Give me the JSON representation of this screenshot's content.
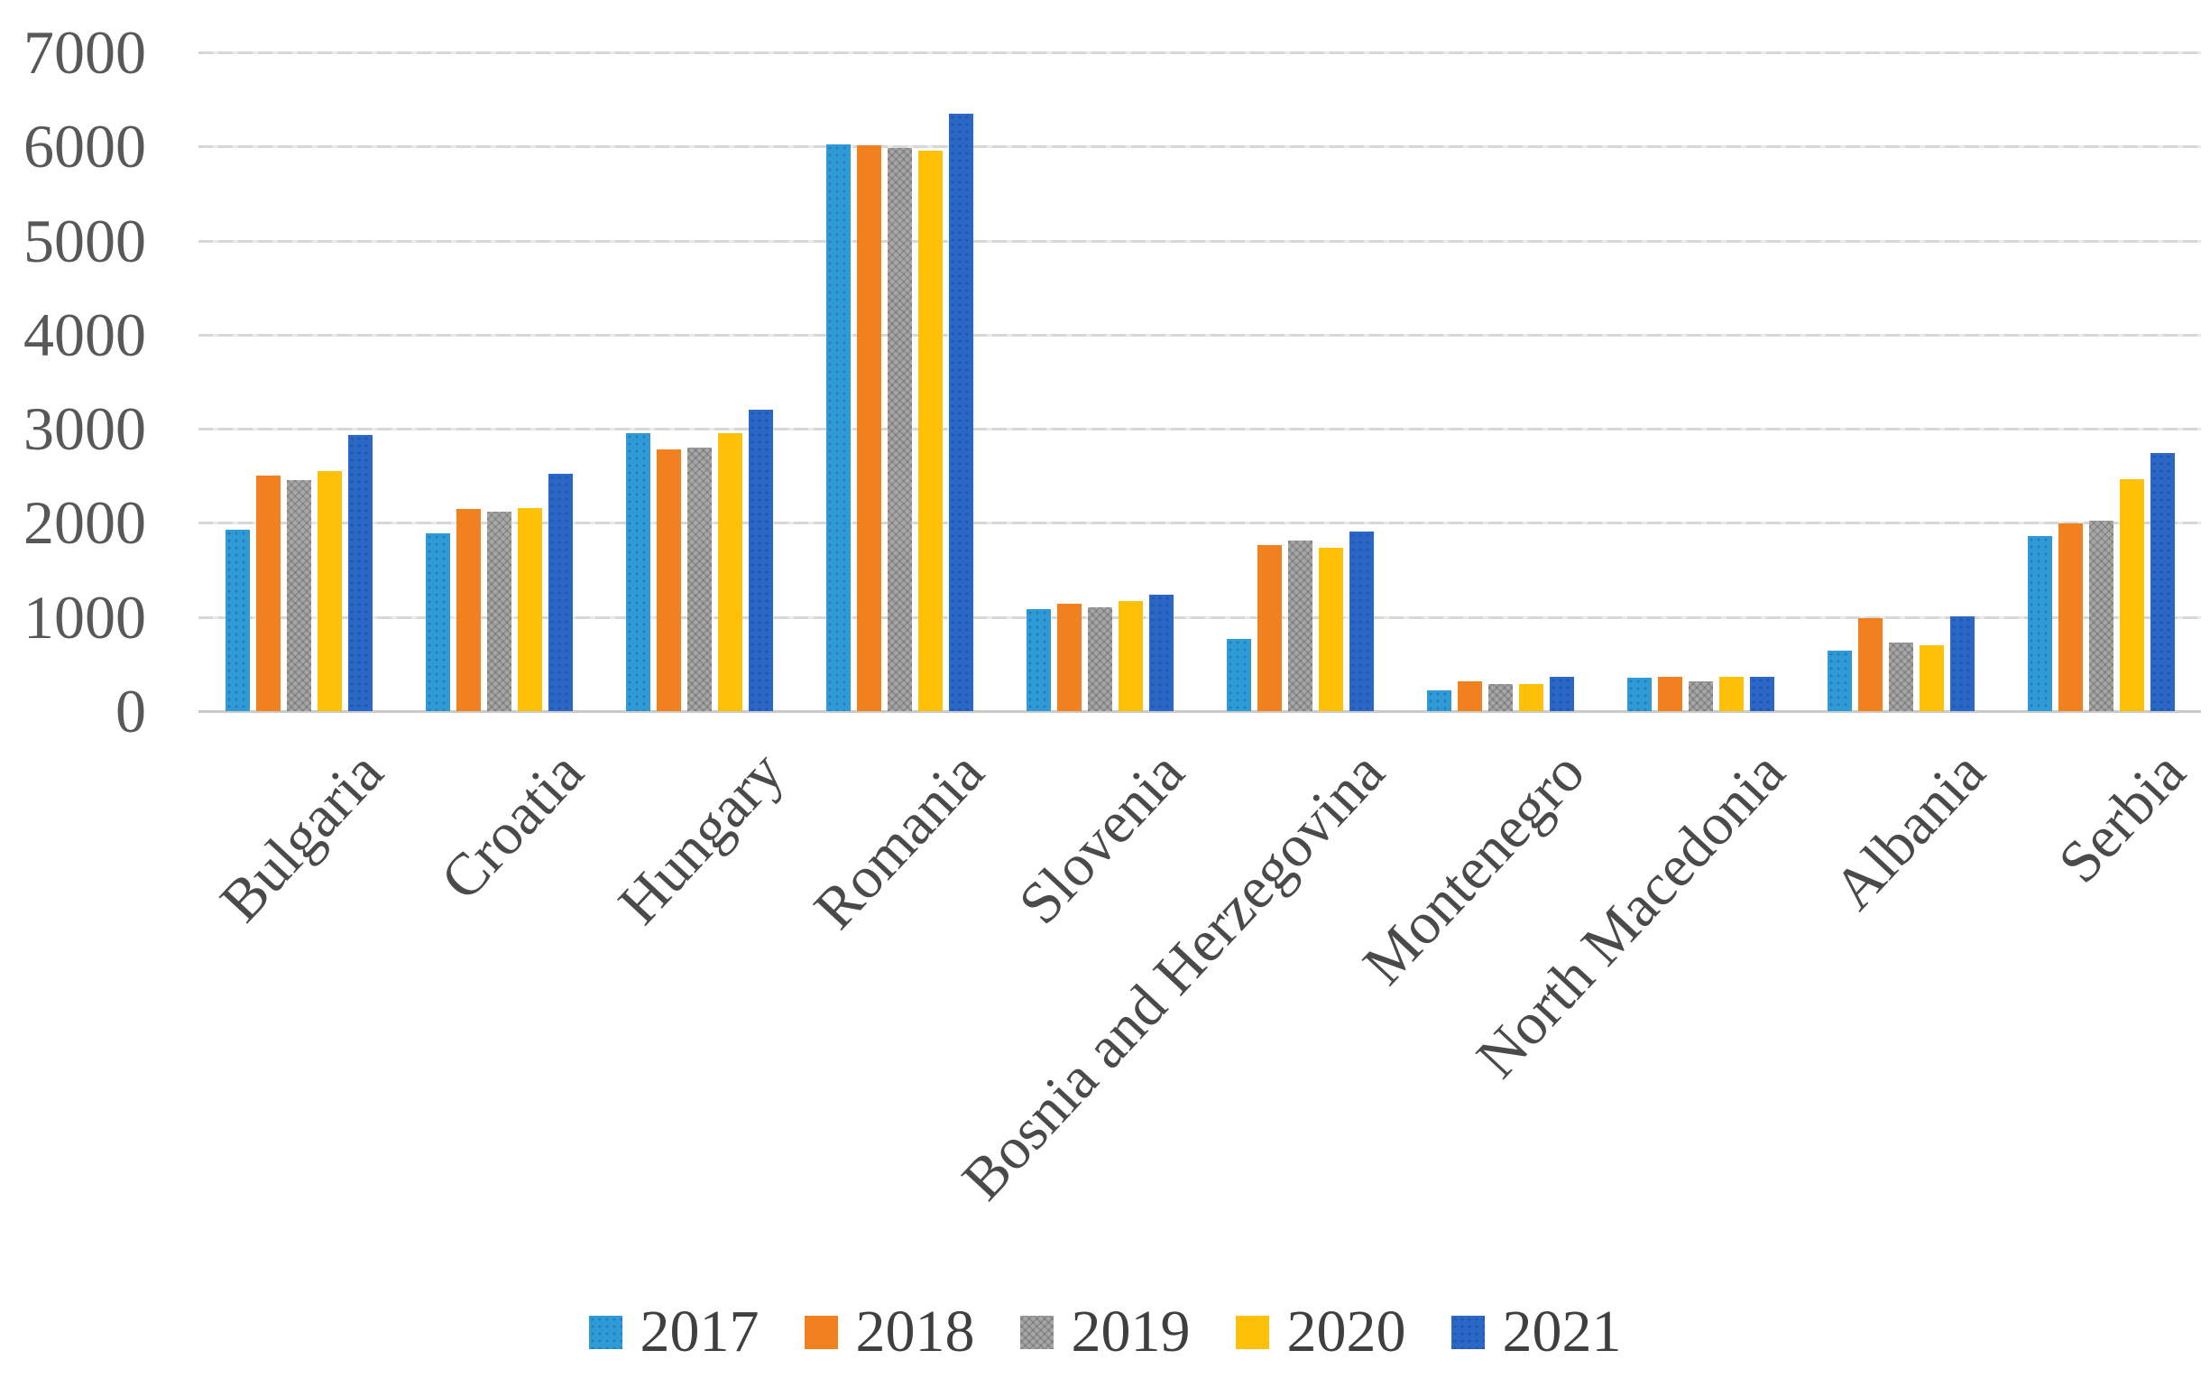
{
  "figure": {
    "background": "#ffffff",
    "text_color": "#4a4a4a",
    "gridline_color": "#d7d7d7"
  },
  "chart_data": {
    "type": "bar",
    "title": "",
    "xlabel": "",
    "ylabel": "",
    "categories": [
      "Bulgaria",
      "Croatia",
      "Hungary",
      "Romania",
      "Slovenia",
      "Bosnia and Herzegovina",
      "Montenegro",
      "North Macedonia",
      "Albania",
      "Serbia"
    ],
    "series": [
      {
        "name": "2017",
        "color": "#2e9ad6",
        "pattern": "dots",
        "values": [
          1930,
          1890,
          2950,
          6020,
          1080,
          770,
          220,
          355,
          640,
          1860
        ]
      },
      {
        "name": "2018",
        "color": "#f1801f",
        "pattern": "none",
        "values": [
          2500,
          2150,
          2780,
          6010,
          1140,
          1760,
          320,
          360,
          990,
          1990
        ]
      },
      {
        "name": "2019",
        "color": "#a7a7a7",
        "pattern": "cross",
        "values": [
          2450,
          2120,
          2800,
          5980,
          1100,
          1810,
          285,
          315,
          730,
          2020
        ]
      },
      {
        "name": "2020",
        "color": "#ffc008",
        "pattern": "none",
        "values": [
          2550,
          2160,
          2950,
          5950,
          1170,
          1740,
          290,
          360,
          700,
          2460
        ]
      },
      {
        "name": "2021",
        "color": "#2a67c6",
        "pattern": "dots",
        "values": [
          2930,
          2520,
          3200,
          6350,
          1240,
          1910,
          360,
          360,
          1010,
          2740
        ]
      }
    ],
    "ylim": [
      0,
      7000
    ],
    "yticks": [
      "0",
      "1000",
      "2000",
      "3000",
      "4000",
      "5000",
      "6000",
      "7000"
    ],
    "grid": true,
    "legend_position": "bottom"
  }
}
